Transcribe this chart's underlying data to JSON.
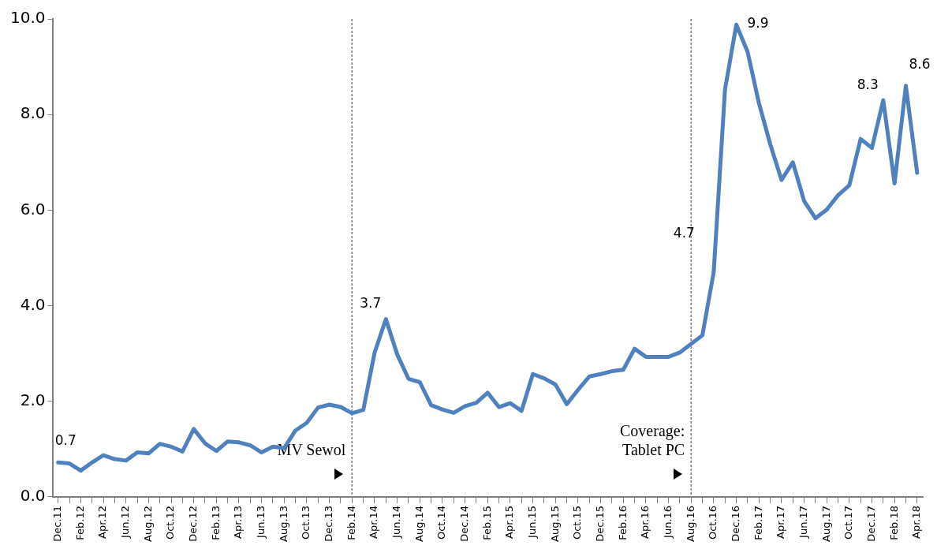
{
  "chart_data": {
    "type": "line",
    "categories": [
      "Dec.11",
      null,
      "Feb.12",
      null,
      "Apr.12",
      null,
      "Jun.12",
      null,
      "Aug.12",
      null,
      "Oct.12",
      null,
      "Dec.12",
      null,
      "Feb.13",
      null,
      "Apr.13",
      null,
      "Jun.13",
      null,
      "Aug.13",
      null,
      "Oct.13",
      null,
      "Dec.13",
      null,
      "Feb.14",
      null,
      "Apr.14",
      null,
      "Jun.14",
      null,
      "Aug.14",
      null,
      "Oct.14",
      null,
      "Dec.14",
      null,
      "Feb.15",
      null,
      "Apr.15",
      null,
      "Jun.15",
      null,
      "Aug.15",
      null,
      "Oct.15",
      null,
      "Dec.15",
      null,
      "Feb.16",
      null,
      "Apr.16",
      null,
      "Jun.16",
      null,
      "Aug.16",
      null,
      "Oct.16",
      null,
      "Dec.16",
      null,
      "Feb.17",
      null,
      "Apr.17",
      null,
      "Jun.17",
      null,
      "Aug.17",
      null,
      "Oct.17",
      null,
      "Dec.17",
      null,
      "Feb.18",
      null,
      "Apr.18"
    ],
    "series": [
      {
        "color": "#4f81bd",
        "values": [
          0.72,
          0.7,
          0.55,
          0.72,
          0.87,
          0.79,
          0.76,
          0.93,
          0.91,
          1.11,
          1.05,
          0.95,
          1.42,
          1.12,
          0.96,
          1.16,
          1.14,
          1.08,
          0.93,
          1.05,
          1.02,
          1.39,
          1.55,
          1.87,
          1.93,
          1.88,
          1.75,
          1.82,
          3.02,
          3.72,
          2.98,
          2.47,
          2.4,
          1.92,
          1.83,
          1.76,
          1.9,
          1.97,
          2.18,
          1.88,
          1.96,
          1.8,
          2.57,
          2.48,
          2.35,
          1.94,
          2.24,
          2.52,
          2.57,
          2.63,
          2.66,
          3.1,
          2.93,
          2.93,
          2.93,
          3.02,
          3.2,
          3.38,
          4.7,
          8.52,
          9.88,
          9.31,
          8.24,
          7.38,
          6.63,
          7.0,
          6.19,
          5.83,
          6.01,
          6.31,
          6.52,
          7.49,
          7.3,
          8.3,
          6.56,
          8.6,
          6.78
        ],
        "value_labels": [
          "0.7",
          null,
          null,
          null,
          null,
          null,
          null,
          null,
          null,
          null,
          null,
          null,
          null,
          null,
          null,
          null,
          null,
          null,
          null,
          null,
          null,
          null,
          null,
          null,
          null,
          null,
          null,
          null,
          null,
          "3.7",
          null,
          null,
          null,
          null,
          null,
          null,
          null,
          null,
          null,
          null,
          null,
          null,
          null,
          null,
          null,
          null,
          null,
          null,
          null,
          null,
          null,
          null,
          null,
          null,
          null,
          null,
          null,
          null,
          "4.7",
          null,
          "9.9",
          null,
          null,
          null,
          null,
          null,
          null,
          null,
          null,
          null,
          null,
          null,
          null,
          "8.3",
          null,
          "8.6",
          null
        ]
      }
    ],
    "ylim": [
      0,
      10
    ],
    "yticks": [
      {
        "value": 0,
        "label": "0.0"
      },
      {
        "value": 2,
        "label": "2.0"
      },
      {
        "value": 4,
        "label": "4.0"
      },
      {
        "value": 6,
        "label": "6.0"
      },
      {
        "value": 8,
        "label": "8.0"
      },
      {
        "value": 10,
        "label": "10.0"
      }
    ],
    "ref_lines": [
      {
        "axis": "x",
        "value": "Feb.14",
        "label": "MV Sewol",
        "color": "#808080",
        "line_style": "dotted"
      },
      {
        "axis": "x",
        "value": "Aug.16",
        "label": "Coverage: Tablet PC",
        "color": "#808080",
        "line_style": "dotted"
      }
    ],
    "grid": false,
    "legend": false,
    "marker": "none",
    "line_style": "solid"
  }
}
